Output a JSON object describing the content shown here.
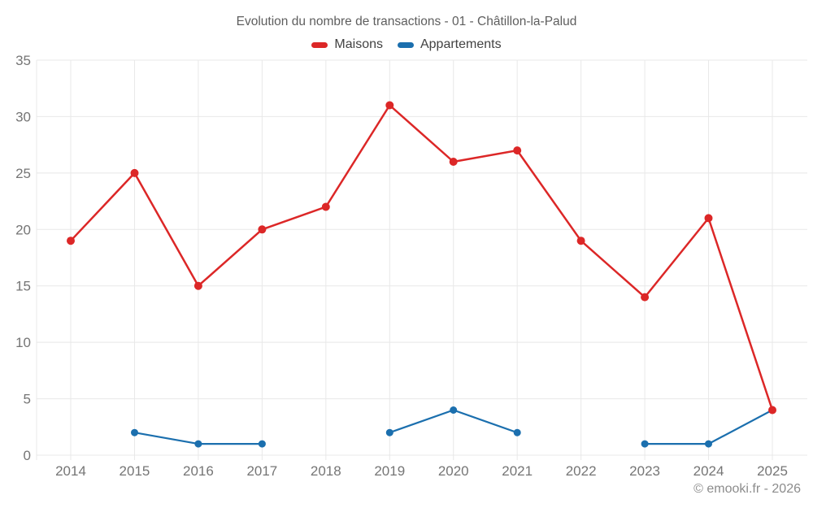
{
  "title": "Evolution du nombre de transactions - 01 - Châtillon-la-Palud",
  "footer": "© emooki.fr - 2026",
  "colors": {
    "maisons": "#dc2727",
    "appartements": "#1b6fae",
    "gridline": "#e8e8e8",
    "tick_label": "#757575",
    "title_text": "#5e5e5e",
    "legend_text": "#424242",
    "footer_text": "#8c8c8c",
    "background": "#ffffff"
  },
  "chart_data": {
    "type": "line",
    "title": "Evolution du nombre de transactions - 01 - Châtillon-la-Palud",
    "x": [
      2014,
      2015,
      2016,
      2017,
      2018,
      2019,
      2020,
      2021,
      2022,
      2023,
      2024,
      2025
    ],
    "series": [
      {
        "name": "Maisons",
        "color": "#dc2727",
        "point_radius": 5,
        "line_width": 2.5,
        "values": [
          19,
          25,
          15,
          20,
          22,
          31,
          26,
          27,
          19,
          14,
          21,
          4
        ]
      },
      {
        "name": "Appartements",
        "color": "#1b6fae",
        "point_radius": 4.5,
        "line_width": 2.2,
        "values": [
          null,
          2,
          1,
          1,
          null,
          2,
          4,
          2,
          null,
          1,
          1,
          4
        ]
      }
    ],
    "xlabel": "",
    "ylabel": "",
    "ylim": [
      0,
      35
    ],
    "ytick_step": 5,
    "grid": true,
    "legend_position": "top"
  }
}
